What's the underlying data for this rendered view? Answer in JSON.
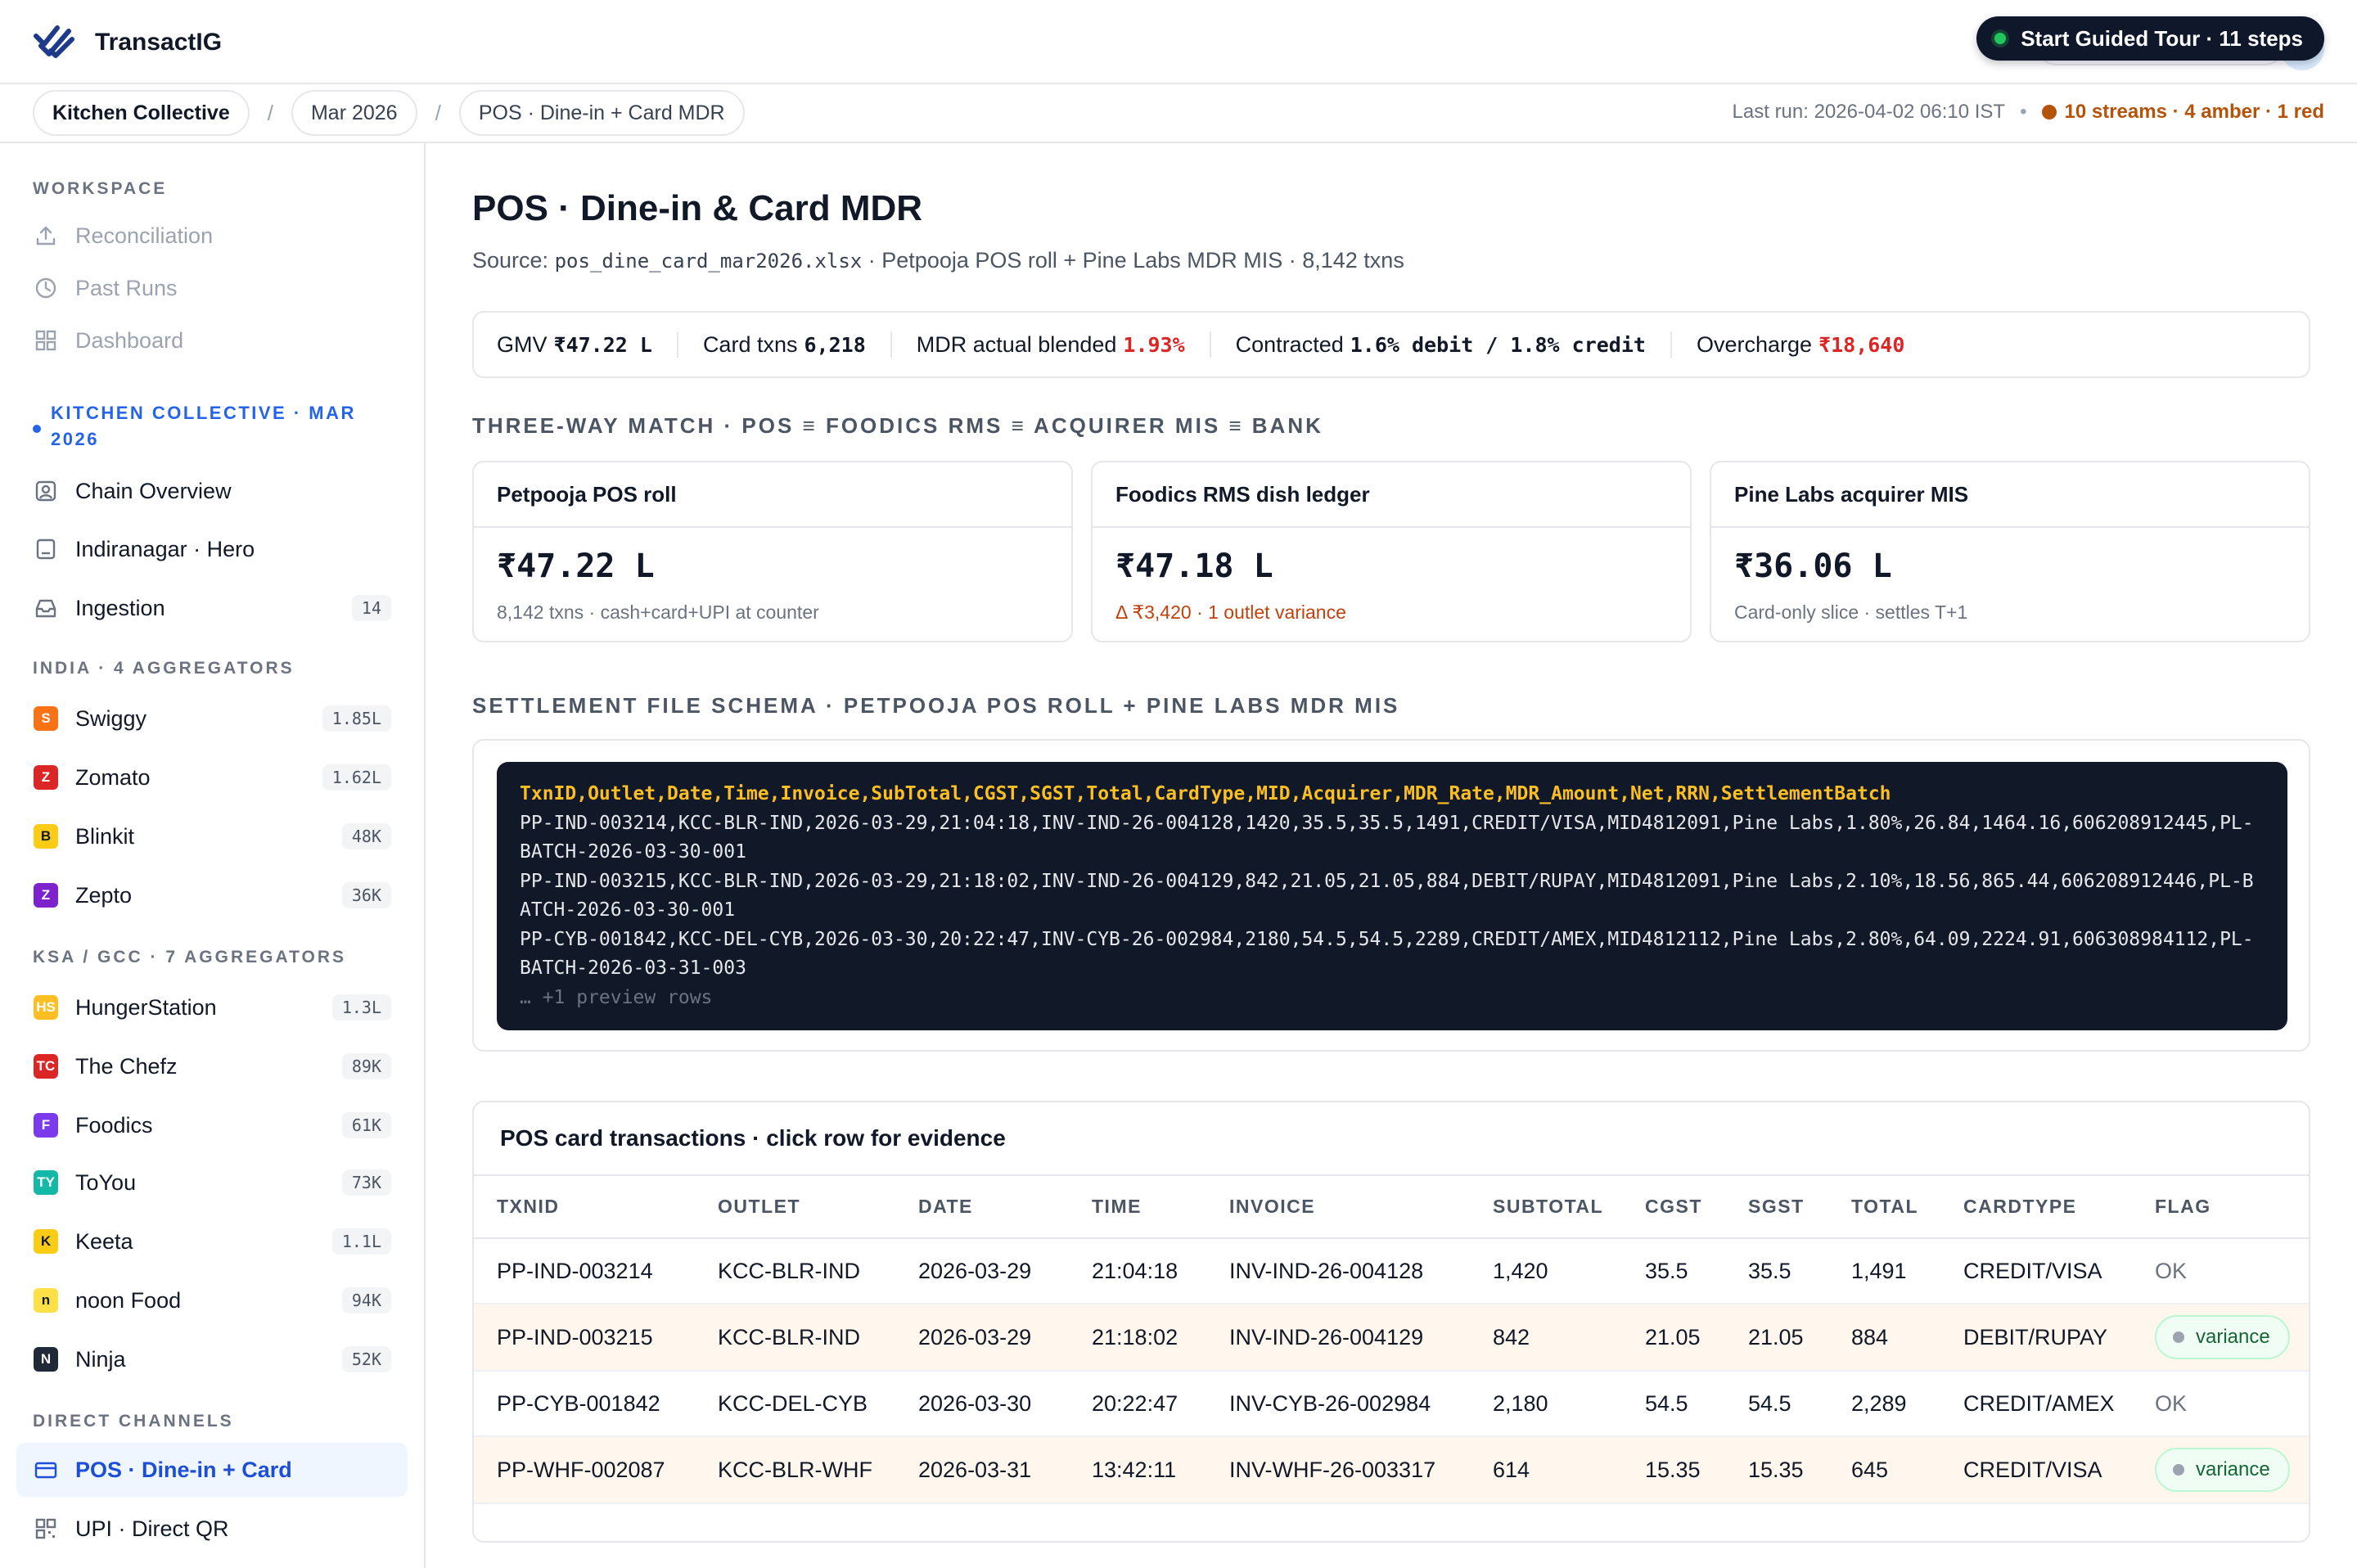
{
  "app": {
    "name": "TransactIG"
  },
  "tour": {
    "label": "Start Guided Tour · 11 steps"
  },
  "breadcrumb": [
    "Kitchen Collective",
    "Mar 2026",
    "POS · Dine-in + Card MDR"
  ],
  "run": {
    "last_run": "Last run: 2026-04-02 06:10 IST",
    "status": "10 streams · 4 amber · 1 red",
    "status_color": "#b45309"
  },
  "sidebar": {
    "workspace_label": "WORKSPACE",
    "workspace": [
      {
        "label": "Reconciliation",
        "icon": "upload-icon"
      },
      {
        "label": "Past Runs",
        "icon": "clock-icon"
      },
      {
        "label": "Dashboard",
        "icon": "grid-icon"
      }
    ],
    "client_label": "KITCHEN COLLECTIVE · MAR 2026",
    "client": [
      {
        "label": "Chain Overview",
        "icon": "user-icon",
        "count": ""
      },
      {
        "label": "Indiranagar · Hero",
        "icon": "store-icon",
        "count": ""
      },
      {
        "label": "Ingestion",
        "icon": "inbox-icon",
        "count": "14"
      }
    ],
    "india_label": "INDIA · 4 AGGREGATORS",
    "india": [
      {
        "label": "Swiggy",
        "abbr": "S",
        "color": "#f97316",
        "count": "1.85L"
      },
      {
        "label": "Zomato",
        "abbr": "Z",
        "color": "#dc2626",
        "count": "1.62L"
      },
      {
        "label": "Blinkit",
        "abbr": "B",
        "color": "#facc15",
        "count": "48K"
      },
      {
        "label": "Zepto",
        "abbr": "Z",
        "color": "#7e22ce",
        "count": "36K"
      }
    ],
    "ksa_label": "KSA / GCC · 7 AGGREGATORS",
    "ksa": [
      {
        "label": "HungerStation",
        "abbr": "HS",
        "color": "#fbbf24",
        "count": "1.3L"
      },
      {
        "label": "The Chefz",
        "abbr": "TC",
        "color": "#dc2626",
        "count": "89K"
      },
      {
        "label": "Foodics",
        "abbr": "F",
        "color": "#7c3aed",
        "count": "61K"
      },
      {
        "label": "ToYou",
        "abbr": "TY",
        "color": "#14b8a6",
        "count": "73K"
      },
      {
        "label": "Keeta",
        "abbr": "K",
        "color": "#facc15",
        "count": "1.1L"
      },
      {
        "label": "noon Food",
        "abbr": "n",
        "color": "#fde047",
        "count": "94K"
      },
      {
        "label": "Ninja",
        "abbr": "N",
        "color": "#1f2937",
        "count": "52K"
      }
    ],
    "direct_label": "DIRECT CHANNELS",
    "direct": [
      {
        "label": "POS · Dine-in + Card",
        "icon": "card-icon",
        "active": true
      },
      {
        "label": "UPI · Direct QR",
        "icon": "qr-icon",
        "active": false
      }
    ]
  },
  "page": {
    "title": "POS · Dine-in & Card MDR",
    "source_prefix": "Source:",
    "source_file": "pos_dine_card_mar2026.xlsx",
    "source_suffix": "· Petpooja POS roll + Pine Labs MDR MIS · 8,142 txns"
  },
  "metrics": [
    {
      "label": "GMV",
      "value": "₹47.22 L",
      "red": false
    },
    {
      "label": "Card txns",
      "value": "6,218",
      "red": false
    },
    {
      "label": "MDR actual blended",
      "value": "1.93%",
      "red": true
    },
    {
      "label": "Contracted",
      "value": "1.6% debit / 1.8% credit",
      "red": false
    },
    {
      "label": "Overcharge",
      "value": "₹18,640",
      "red": true
    }
  ],
  "match": {
    "label": "THREE-WAY MATCH · POS ≡ FOODICS RMS ≡ ACQUIRER MIS ≡ BANK",
    "cards": [
      {
        "title": "Petpooja POS roll",
        "value": "₹47.22 L",
        "sub": "8,142 txns · cash+card+UPI at counter",
        "amber": false
      },
      {
        "title": "Foodics RMS dish ledger",
        "value": "₹47.18 L",
        "sub": "Δ ₹3,420 · 1 outlet variance",
        "amber": true
      },
      {
        "title": "Pine Labs acquirer MIS",
        "value": "₹36.06 L",
        "sub": "Card-only slice · settles T+1",
        "amber": false
      }
    ]
  },
  "schema": {
    "label": "SETTLEMENT FILE SCHEMA · PETPOOJA POS ROLL + PINE LABS MDR MIS",
    "header": "TxnID,Outlet,Date,Time,Invoice,SubTotal,CGST,SGST,Total,CardType,MID,Acquirer,MDR_Rate,MDR_Amount,Net,RRN,SettlementBatch",
    "rows": [
      "PP-IND-003214,KCC-BLR-IND,2026-03-29,21:04:18,INV-IND-26-004128,1420,35.5,35.5,1491,CREDIT/VISA,MID4812091,Pine Labs,1.80%,26.84,1464.16,606208912445,PL-BATCH-2026-03-30-001",
      "PP-IND-003215,KCC-BLR-IND,2026-03-29,21:18:02,INV-IND-26-004129,842,21.05,21.05,884,DEBIT/RUPAY,MID4812091,Pine Labs,2.10%,18.56,865.44,606208912446,PL-BATCH-2026-03-30-001",
      "PP-CYB-001842,KCC-DEL-CYB,2026-03-30,20:22:47,INV-CYB-26-002984,2180,54.5,54.5,2289,CREDIT/AMEX,MID4812112,Pine Labs,2.80%,64.09,2224.91,606308984112,PL-BATCH-2026-03-31-003"
    ],
    "more": "… +1 preview rows"
  },
  "table": {
    "title": "POS card transactions · click row for evidence",
    "columns": [
      "TXNID",
      "OUTLET",
      "DATE",
      "TIME",
      "INVOICE",
      "SUBTOTAL",
      "CGST",
      "SGST",
      "TOTAL",
      "CARDTYPE",
      "FLAG"
    ],
    "rows": [
      {
        "txnid": "PP-IND-003214",
        "outlet": "KCC-BLR-IND",
        "date": "2026-03-29",
        "time": "21:04:18",
        "invoice": "INV-IND-26-004128",
        "subtotal": "1,420",
        "cgst": "35.5",
        "sgst": "35.5",
        "total": "1,491",
        "cardtype": "CREDIT/VISA",
        "flag": "OK"
      },
      {
        "txnid": "PP-IND-003215",
        "outlet": "KCC-BLR-IND",
        "date": "2026-03-29",
        "time": "21:18:02",
        "invoice": "INV-IND-26-004129",
        "subtotal": "842",
        "cgst": "21.05",
        "sgst": "21.05",
        "total": "884",
        "cardtype": "DEBIT/RUPAY",
        "flag": "variance"
      },
      {
        "txnid": "PP-CYB-001842",
        "outlet": "KCC-DEL-CYB",
        "date": "2026-03-30",
        "time": "20:22:47",
        "invoice": "INV-CYB-26-002984",
        "subtotal": "2,180",
        "cgst": "54.5",
        "sgst": "54.5",
        "total": "2,289",
        "cardtype": "CREDIT/AMEX",
        "flag": "OK"
      },
      {
        "txnid": "PP-WHF-002087",
        "outlet": "KCC-BLR-WHF",
        "date": "2026-03-31",
        "time": "13:42:11",
        "invoice": "INV-WHF-26-003317",
        "subtotal": "614",
        "cgst": "15.35",
        "sgst": "15.35",
        "total": "645",
        "cardtype": "CREDIT/VISA",
        "flag": "variance"
      }
    ]
  }
}
